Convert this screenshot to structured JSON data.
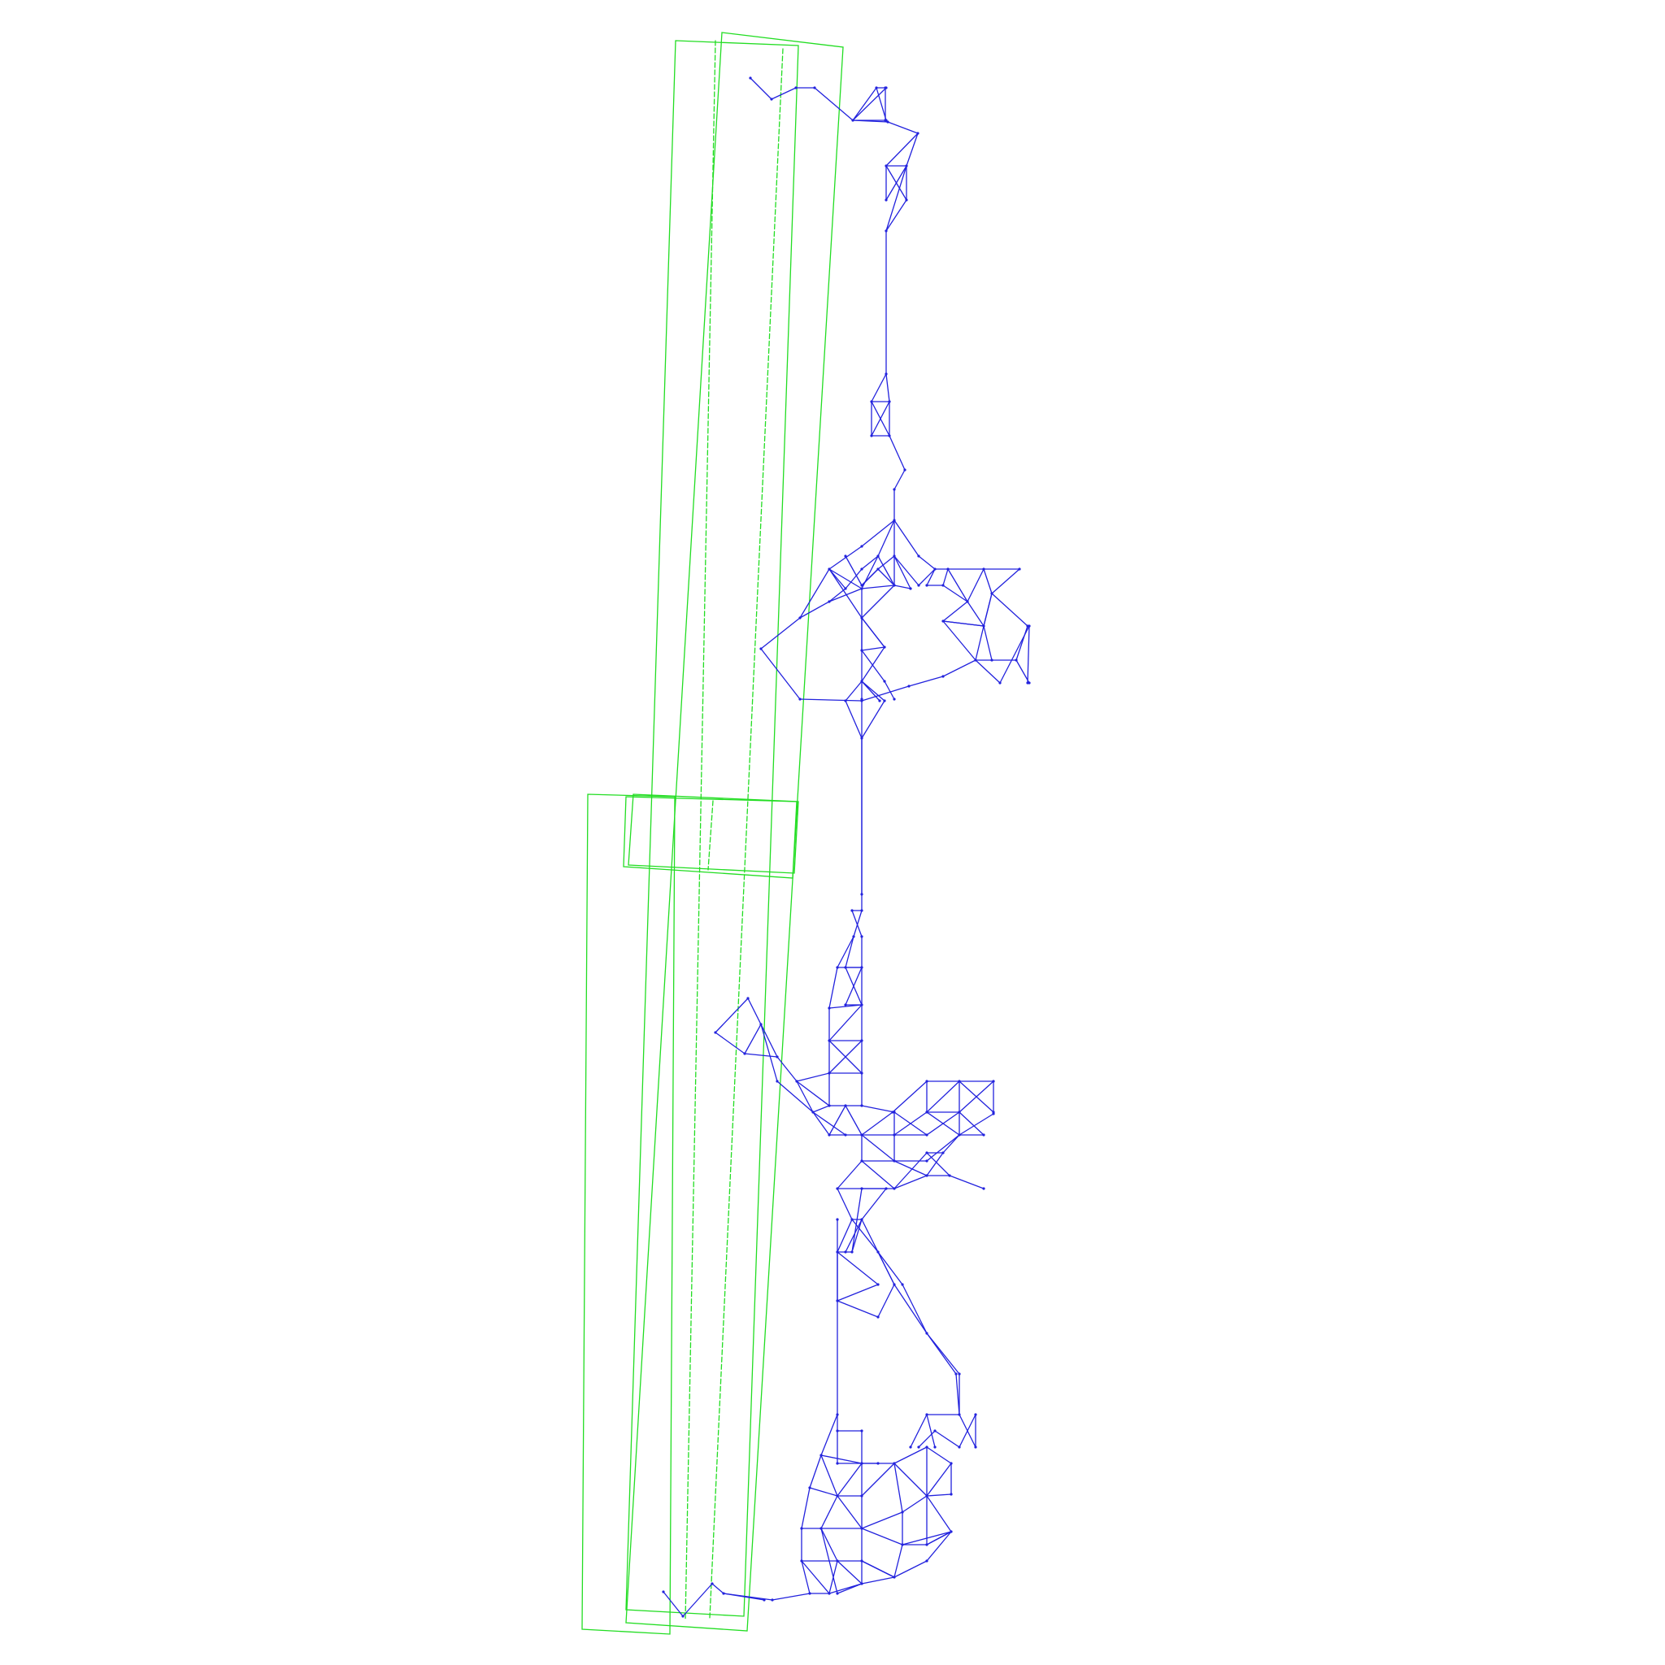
{
  "colors": {
    "background": "#ffffff",
    "mesh": "#2222dd",
    "boundary": "#22dd22"
  },
  "labels": {}
}
